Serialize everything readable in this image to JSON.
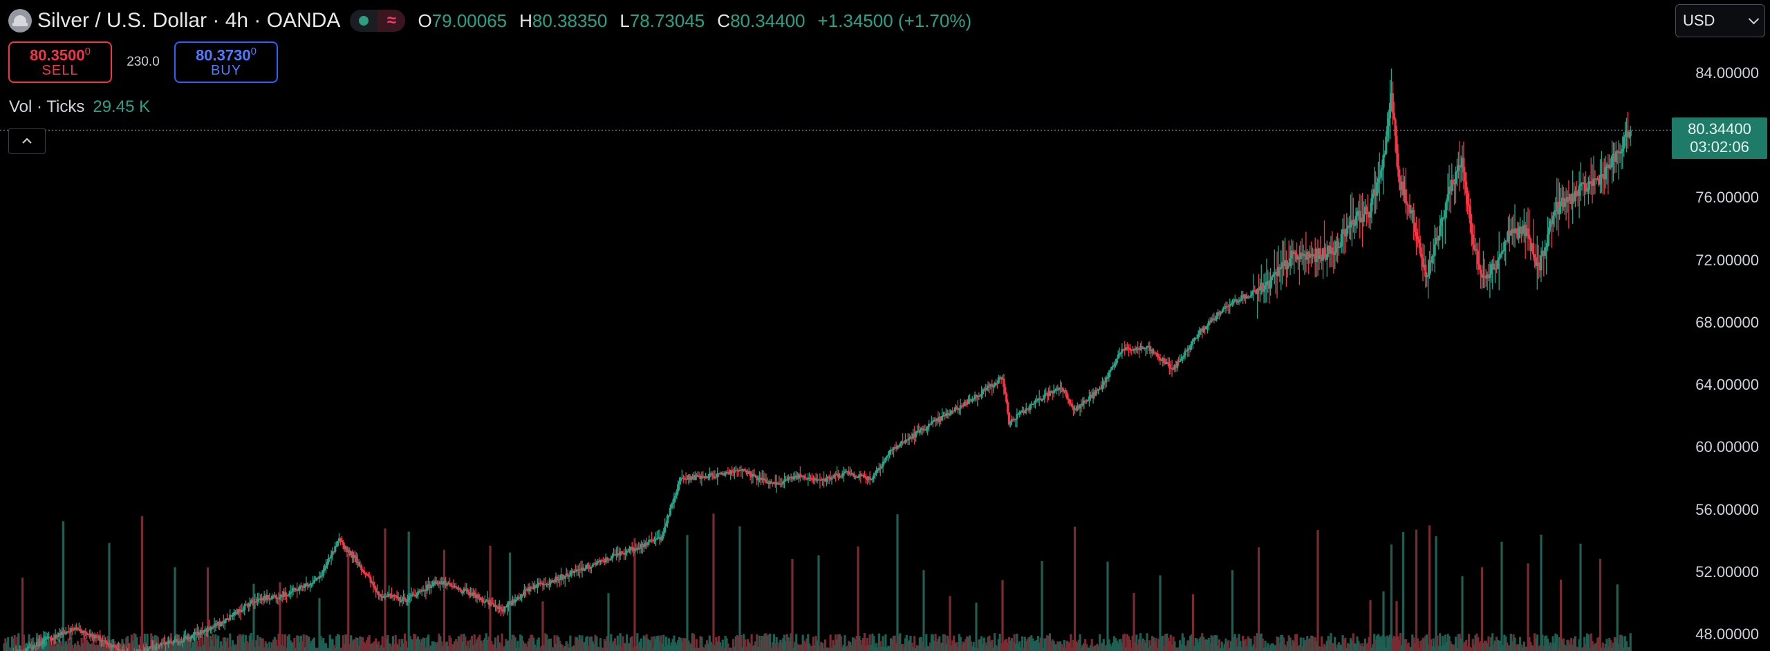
{
  "symbol": {
    "title": "Silver / U.S. Dollar · 4h · OANDA",
    "logo_icon": "silver-coin-icon",
    "delay_icon": "≈"
  },
  "ohlc": {
    "open_label": "O",
    "open": "79.00065",
    "high_label": "H",
    "high": "80.38350",
    "low_label": "L",
    "low": "78.73045",
    "close_label": "C",
    "close": "80.34400",
    "change": "+1.34500 (+1.70%)"
  },
  "trade": {
    "sell_price_main": "80.3500",
    "sell_price_sup": "0",
    "sell_label": "SELL",
    "spread": "230.0",
    "buy_price_main": "80.3730",
    "buy_price_sup": "0",
    "buy_label": "BUY"
  },
  "volume_legend": {
    "label": "Vol · Ticks",
    "value": "29.45 K"
  },
  "currency": {
    "selected": "USD"
  },
  "last_price": {
    "price": "80.34400",
    "countdown": "03:02:06"
  },
  "colors": {
    "up": "#26a389",
    "down": "#f23645",
    "up_vol": "#1f5e52",
    "down_vol": "#7a2a31",
    "background": "#000000",
    "axis_text": "#d1d4dc",
    "price_line": "#6b6f78"
  },
  "chart_data": {
    "type": "candlestick",
    "ylim": [
      46.0,
      88.0
    ],
    "y_axis_ticks": [
      "84.00000",
      "80.00000",
      "76.00000",
      "72.00000",
      "68.00000",
      "64.00000",
      "60.00000",
      "56.00000",
      "52.00000",
      "48.00000"
    ],
    "last_price_line": 80.344,
    "anchors": [
      [
        0,
        46.0
      ],
      [
        8,
        46.6
      ],
      [
        30,
        47.6
      ],
      [
        55,
        48.4
      ],
      [
        75,
        47.6
      ],
      [
        95,
        46.7
      ],
      [
        120,
        47.3
      ],
      [
        140,
        47.8
      ],
      [
        165,
        48.7
      ],
      [
        190,
        50.2
      ],
      [
        215,
        50.6
      ],
      [
        240,
        51.6
      ],
      [
        255,
        54.0
      ],
      [
        268,
        52.8
      ],
      [
        285,
        50.6
      ],
      [
        305,
        50.2
      ],
      [
        330,
        51.4
      ],
      [
        355,
        50.6
      ],
      [
        380,
        49.6
      ],
      [
        400,
        51.0
      ],
      [
        425,
        51.7
      ],
      [
        450,
        52.5
      ],
      [
        475,
        53.4
      ],
      [
        500,
        54.2
      ],
      [
        515,
        58.0
      ],
      [
        540,
        58.2
      ],
      [
        560,
        58.6
      ],
      [
        585,
        57.6
      ],
      [
        605,
        58.2
      ],
      [
        625,
        57.9
      ],
      [
        640,
        58.4
      ],
      [
        660,
        58.0
      ],
      [
        675,
        59.8
      ],
      [
        700,
        61.2
      ],
      [
        720,
        62.2
      ],
      [
        740,
        63.3
      ],
      [
        760,
        64.5
      ],
      [
        765,
        61.6
      ],
      [
        790,
        63.2
      ],
      [
        805,
        63.9
      ],
      [
        815,
        62.4
      ],
      [
        835,
        63.8
      ],
      [
        850,
        66.2
      ],
      [
        870,
        66.4
      ],
      [
        890,
        65.0
      ],
      [
        910,
        67.4
      ],
      [
        935,
        69.4
      ],
      [
        960,
        70.2
      ],
      [
        980,
        72.2
      ],
      [
        1000,
        72.3
      ],
      [
        1012,
        72.6
      ],
      [
        1025,
        74.5
      ],
      [
        1040,
        75.2
      ],
      [
        1050,
        78.6
      ],
      [
        1056,
        82.5
      ],
      [
        1062,
        77.0
      ],
      [
        1072,
        75.0
      ],
      [
        1082,
        71.0
      ],
      [
        1090,
        73.0
      ],
      [
        1100,
        76.5
      ],
      [
        1110,
        78.5
      ],
      [
        1118,
        73.0
      ],
      [
        1126,
        71.0
      ],
      [
        1136,
        71.8
      ],
      [
        1146,
        73.8
      ],
      [
        1158,
        73.9
      ],
      [
        1168,
        71.4
      ],
      [
        1180,
        75.2
      ],
      [
        1200,
        76.5
      ],
      [
        1215,
        77.3
      ],
      [
        1230,
        79.0
      ],
      [
        1238,
        80.34
      ]
    ],
    "volume_spikes_up": [
      45,
      80,
      130,
      190,
      240,
      308,
      385,
      460,
      520,
      560,
      620,
      680,
      700,
      740,
      790,
      840,
      880,
      935,
      1050,
      1065,
      1090,
      1110,
      1140,
      1170,
      1200,
      1228
    ],
    "volume_spikes_down": [
      14,
      105,
      155,
      210,
      262,
      290,
      335,
      370,
      410,
      480,
      540,
      600,
      650,
      720,
      760,
      815,
      860,
      905,
      955,
      1000,
      1040,
      1060,
      1075,
      1085,
      1125,
      1160,
      1185,
      1215
    ]
  }
}
